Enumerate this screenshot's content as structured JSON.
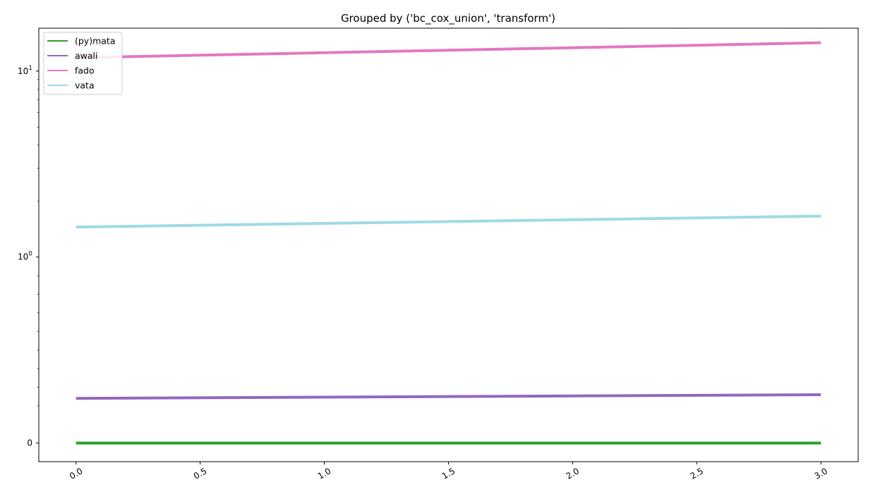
{
  "chart_data": {
    "type": "line",
    "title": "Grouped by ('bc_cox_union', 'transform')",
    "xlabel": "",
    "ylabel": "",
    "x": [
      0.0,
      3.0
    ],
    "xlim": [
      -0.15,
      3.15
    ],
    "xticks": [
      "0.0",
      "0.5",
      "1.0",
      "1.5",
      "2.0",
      "2.5",
      "3.0"
    ],
    "yscale": "symlog",
    "ylim": [
      -0.1,
      17
    ],
    "yticks": [
      {
        "value": 0,
        "label": "0"
      },
      {
        "value": 1,
        "label": "10",
        "exp": "0"
      },
      {
        "value": 10,
        "label": "10",
        "exp": "1"
      }
    ],
    "grid": false,
    "legend_position": "top-left",
    "series": [
      {
        "name": "(py)mata",
        "color": "#2ca02c",
        "values": [
          0.0,
          0.0
        ]
      },
      {
        "name": "awali",
        "color": "#9467bd",
        "values": [
          0.24,
          0.26
        ]
      },
      {
        "name": "fado",
        "color": "#e377c2",
        "values": [
          11.8,
          14.2
        ]
      },
      {
        "name": "vata",
        "color": "#9edae5",
        "values": [
          1.45,
          1.66
        ]
      }
    ]
  }
}
